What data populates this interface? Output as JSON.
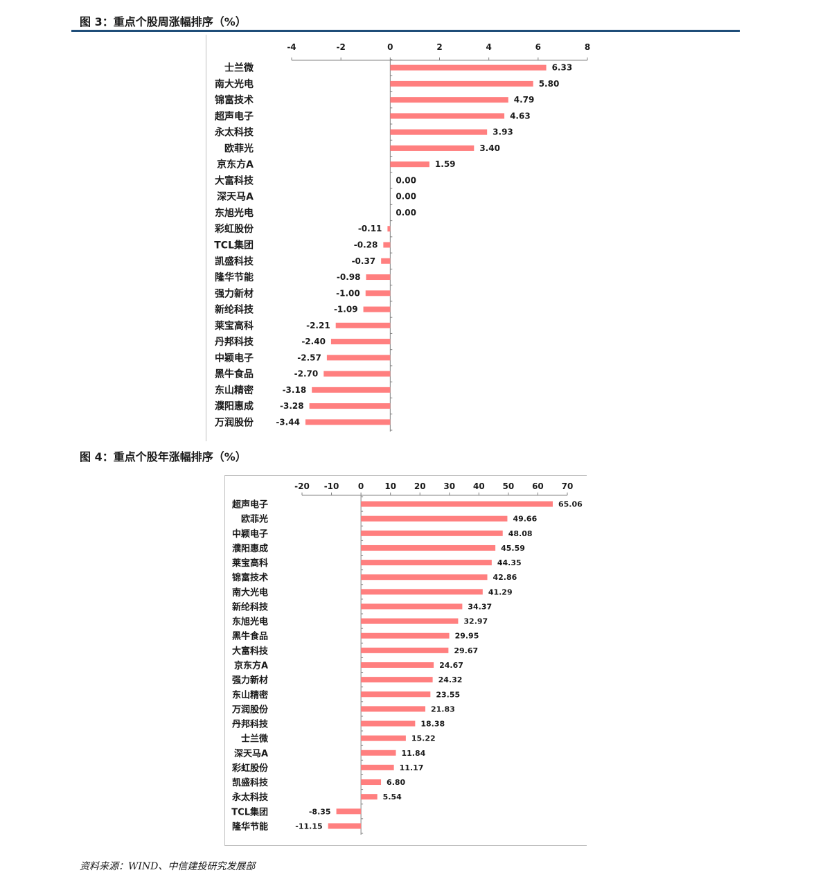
{
  "figure3": {
    "title": "图 3：重点个股周涨幅排序（%）"
  },
  "figure4": {
    "title": "图 4：重点个股年涨幅排序（%）"
  },
  "source": "资料来源：WIND、中信建投研究发展部",
  "colors": {
    "bar": "#ff7f7f",
    "axis": "#808080",
    "title_rule": "#1f4e79"
  },
  "chart_data": [
    {
      "type": "bar",
      "orientation": "horizontal",
      "title": "",
      "xlim": [
        -4,
        8
      ],
      "ticks": [
        -4,
        -2,
        0,
        2,
        4,
        6,
        8
      ],
      "tick_labels": [
        "-4",
        "-2",
        "0",
        "2",
        "4",
        "6",
        "8"
      ],
      "axis_position": "top",
      "categories": [
        "士兰微",
        "南大光电",
        "锦富技术",
        "超声电子",
        "永太科技",
        "欧菲光",
        "京东方A",
        "大富科技",
        "深天马A",
        "东旭光电",
        "彩虹股份",
        "TCL集团",
        "凯盛科技",
        "隆华节能",
        "强力新材",
        "新纶科技",
        "莱宝高科",
        "丹邦科技",
        "中颖电子",
        "黑牛食品",
        "东山精密",
        "濮阳惠成",
        "万润股份"
      ],
      "values": [
        6.33,
        5.8,
        4.79,
        4.63,
        3.93,
        3.4,
        1.59,
        0.0,
        0.0,
        0.0,
        -0.11,
        -0.28,
        -0.37,
        -0.98,
        -1.0,
        -1.09,
        -2.21,
        -2.4,
        -2.57,
        -2.7,
        -3.18,
        -3.28,
        -3.44
      ],
      "data_labels": [
        "6.33",
        "5.80",
        "4.79",
        "4.63",
        "3.93",
        "3.40",
        "1.59",
        "0.00",
        "0.00",
        "0.00",
        "-0.11",
        "-0.28",
        "-0.37",
        "-0.98",
        "-1.00",
        "-1.09",
        "-2.21",
        "-2.40",
        "-2.57",
        "-2.70",
        "-3.18",
        "-3.28",
        "-3.44"
      ]
    },
    {
      "type": "bar",
      "orientation": "horizontal",
      "title": "",
      "xlim": [
        -20,
        70
      ],
      "ticks": [
        -20,
        -10,
        0,
        10,
        20,
        30,
        40,
        50,
        60,
        70
      ],
      "tick_labels": [
        "-20",
        "-10",
        "0",
        "10",
        "20",
        "30",
        "40",
        "50",
        "60",
        "70"
      ],
      "axis_position": "top",
      "categories": [
        "超声电子",
        "欧菲光",
        "中颖电子",
        "濮阳惠成",
        "莱宝高科",
        "锦富技术",
        "南大光电",
        "新纶科技",
        "东旭光电",
        "黑牛食品",
        "大富科技",
        "京东方A",
        "强力新材",
        "东山精密",
        "万润股份",
        "丹邦科技",
        "士兰微",
        "深天马A",
        "彩虹股份",
        "凯盛科技",
        "永太科技",
        "TCL集团",
        "隆华节能"
      ],
      "values": [
        65.06,
        49.66,
        48.08,
        45.59,
        44.35,
        42.86,
        41.29,
        34.37,
        32.97,
        29.95,
        29.67,
        24.67,
        24.32,
        23.55,
        21.83,
        18.38,
        15.22,
        11.84,
        11.17,
        6.8,
        5.54,
        -8.35,
        -11.15
      ],
      "data_labels": [
        "65.06",
        "49.66",
        "48.08",
        "45.59",
        "44.35",
        "42.86",
        "41.29",
        "34.37",
        "32.97",
        "29.95",
        "29.67",
        "24.67",
        "24.32",
        "23.55",
        "21.83",
        "18.38",
        "15.22",
        "11.84",
        "11.17",
        "6.80",
        "5.54",
        "-8.35",
        "-11.15"
      ]
    }
  ]
}
